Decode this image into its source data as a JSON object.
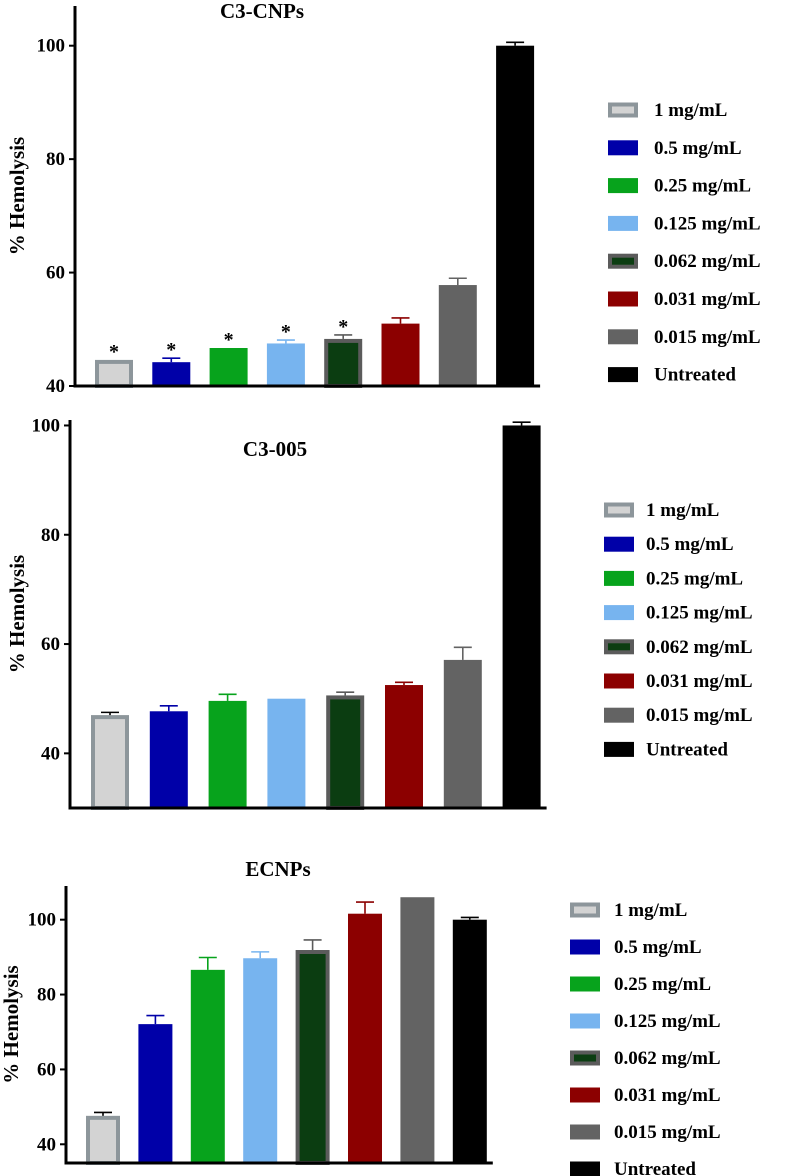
{
  "chart_data": [
    {
      "type": "bar",
      "title": "C3-CNPs",
      "ylabel": "% Hemolysis",
      "ylim": [
        40,
        107
      ],
      "yticks": [
        40,
        60,
        80,
        100
      ],
      "ytick_labels": [
        "40",
        "60",
        "80",
        "100"
      ],
      "legend_position": "right",
      "categories": [
        "1 mg/mL",
        "0.5 mg/mL",
        "0.25 mg/mL",
        "0.125 mg/mL",
        "0.062 mg/mL",
        "0.031 mg/mL",
        "0.015 mg/mL",
        "Untreated"
      ],
      "values": [
        44.6,
        44.2,
        46.7,
        47.5,
        48.3,
        51.0,
        57.8,
        100.0
      ],
      "errors": [
        0.0,
        0.7,
        0.0,
        0.6,
        0.7,
        1.0,
        1.2,
        0.6
      ],
      "significance": [
        "*",
        "*",
        "*",
        "*",
        "*",
        "",
        "",
        ""
      ]
    },
    {
      "type": "bar",
      "title": "C3-005",
      "ylabel": "% Hemolysis",
      "ylim": [
        30,
        101
      ],
      "yticks": [
        40,
        60,
        80,
        100
      ],
      "ytick_labels": [
        "40",
        "60",
        "80",
        "100"
      ],
      "legend_position": "right",
      "categories": [
        "1 mg/mL",
        "0.5 mg/mL",
        "0.25 mg/mL",
        "0.125 mg/mL",
        "0.062 mg/mL",
        "0.031 mg/mL",
        "0.015 mg/mL",
        "Untreated"
      ],
      "values": [
        47.0,
        47.7,
        49.6,
        50.0,
        50.6,
        52.5,
        57.1,
        100.0
      ],
      "errors": [
        0.5,
        1.0,
        1.2,
        0.0,
        0.6,
        0.5,
        2.3,
        0.6
      ],
      "significance": [
        "",
        "",
        "",
        "",
        "",
        "",
        "",
        ""
      ]
    },
    {
      "type": "bar",
      "title": "ECNPs",
      "ylabel": "% Hemolysis",
      "ylim": [
        35,
        109
      ],
      "yticks": [
        40,
        60,
        80,
        100
      ],
      "ytick_labels": [
        "40",
        "60",
        "80",
        "100"
      ],
      "legend_position": "right",
      "categories": [
        "1 mg/mL",
        "0.5 mg/mL",
        "0.25 mg/mL",
        "0.125 mg/mL",
        "0.062 mg/mL",
        "0.031 mg/mL",
        "0.015 mg/mL",
        "Untreated"
      ],
      "values": [
        47.6,
        72.1,
        86.6,
        89.7,
        91.9,
        101.6,
        106.0,
        100.0
      ],
      "errors": [
        0.9,
        2.3,
        3.3,
        1.7,
        2.7,
        3.1,
        0.0,
        0.6
      ],
      "significance": [
        "",
        "",
        "",
        "",
        "",
        "",
        "",
        ""
      ]
    }
  ],
  "series_styles": [
    {
      "fill": "#d3d3d3",
      "stroke": "#8d969b"
    },
    {
      "fill": "#0000a8",
      "stroke": "#0000a8"
    },
    {
      "fill": "#07a31c",
      "stroke": "#07a31c"
    },
    {
      "fill": "#77b4ef",
      "stroke": "#77b4ef"
    },
    {
      "fill": "#0b3d11",
      "stroke": "#5b5b5b"
    },
    {
      "fill": "#8c0000",
      "stroke": "#8c0000"
    },
    {
      "fill": "#636363",
      "stroke": "#636363"
    },
    {
      "fill": "#000000",
      "stroke": "#000000"
    }
  ]
}
